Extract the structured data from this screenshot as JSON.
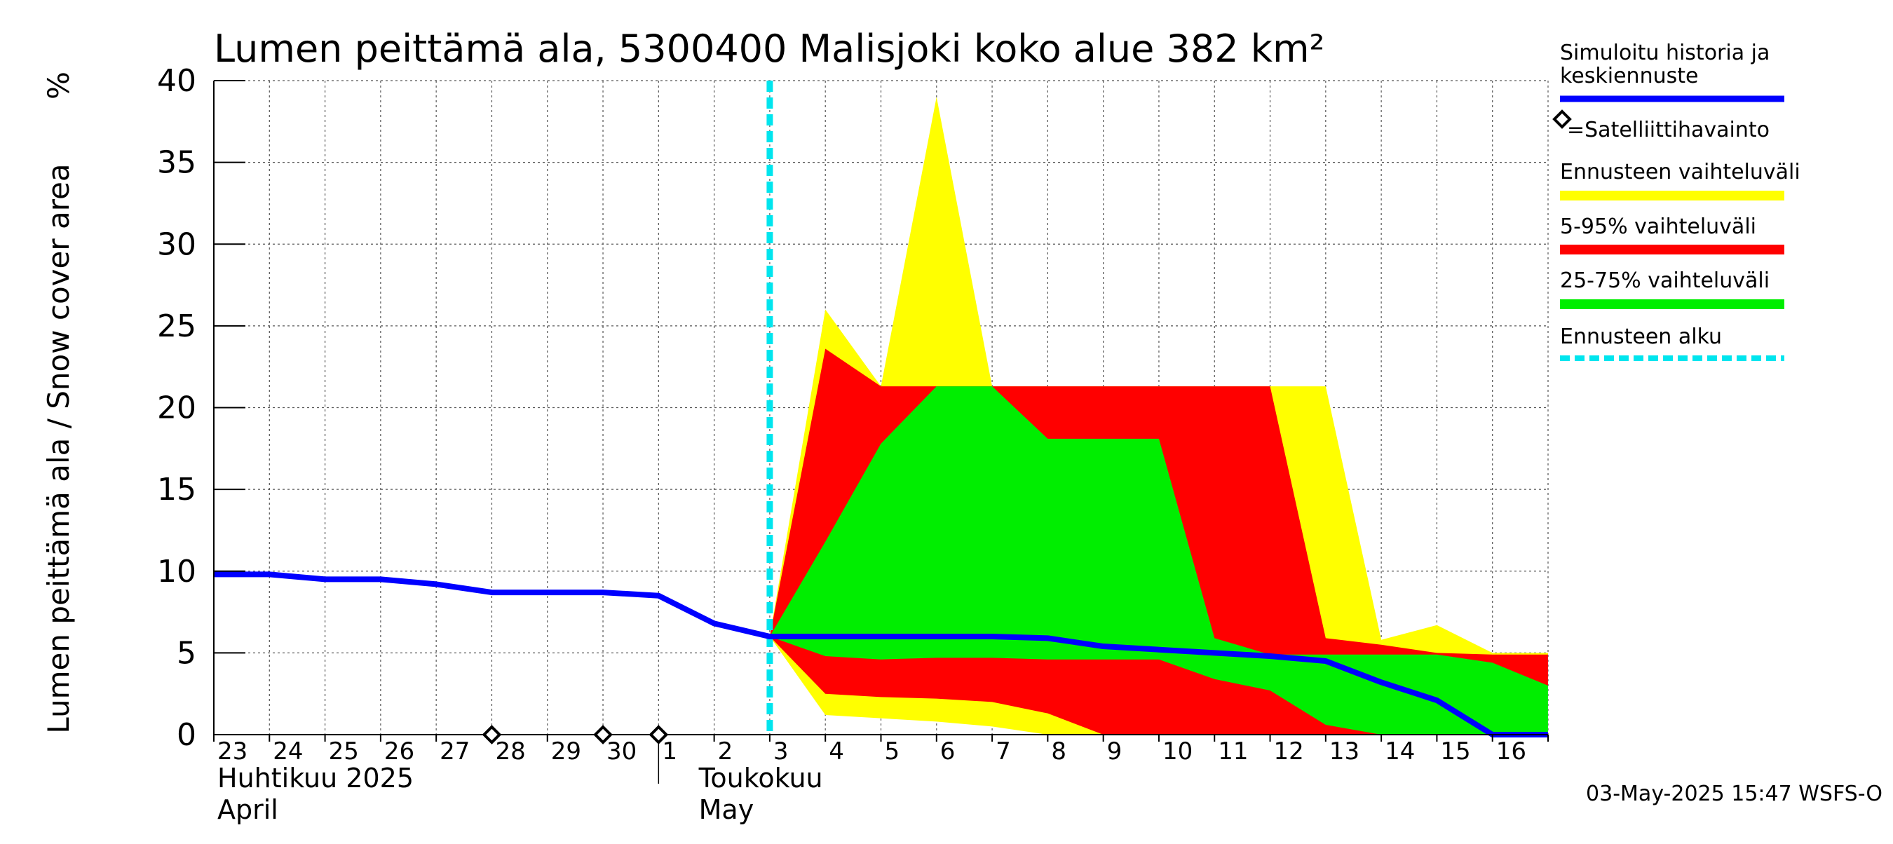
{
  "chart_data": {
    "type": "area",
    "title": "Lumen peittämä ala, 5300400 Malisjoki koko alue 382 km²",
    "ylabel": "Lumen peittämä ala / Snow cover area",
    "yunit": "%",
    "ylim": [
      0,
      40
    ],
    "yticks": [
      0,
      5,
      10,
      15,
      20,
      25,
      30,
      35,
      40
    ],
    "grid": true,
    "x_dates": [
      "2025-04-23",
      "2025-04-24",
      "2025-04-25",
      "2025-04-26",
      "2025-04-27",
      "2025-04-28",
      "2025-04-29",
      "2025-04-30",
      "2025-05-01",
      "2025-05-02",
      "2025-05-03",
      "2025-05-04",
      "2025-05-05",
      "2025-05-06",
      "2025-05-07",
      "2025-05-08",
      "2025-05-09",
      "2025-05-10",
      "2025-05-11",
      "2025-05-12",
      "2025-05-13",
      "2025-05-14",
      "2025-05-15",
      "2025-05-16",
      "2025-05-17"
    ],
    "xtick_labels": [
      "23",
      "24",
      "25",
      "26",
      "27",
      "28",
      "29",
      "30",
      "1",
      "2",
      "3",
      "4",
      "5",
      "6",
      "7",
      "8",
      "9",
      "10",
      "11",
      "12",
      "13",
      "14",
      "15",
      "16"
    ],
    "month_labels": [
      {
        "line1": "Huhtikuu  2025",
        "line2": "April"
      },
      {
        "line1": "Toukokuu",
        "line2": "May"
      }
    ],
    "forecast_start": "2025-05-03",
    "legend_placement": "right",
    "series": [
      {
        "name": "Simuloitu historia ja keskiennuste",
        "color": "#0000ff",
        "x": [
          "2025-04-23",
          "2025-04-24",
          "2025-04-25",
          "2025-04-26",
          "2025-04-27",
          "2025-04-28",
          "2025-04-29",
          "2025-04-30",
          "2025-05-01",
          "2025-05-02",
          "2025-05-03",
          "2025-05-04",
          "2025-05-05",
          "2025-05-06",
          "2025-05-07",
          "2025-05-08",
          "2025-05-09",
          "2025-05-10",
          "2025-05-11",
          "2025-05-12",
          "2025-05-13",
          "2025-05-14",
          "2025-05-15",
          "2025-05-16",
          "2025-05-17"
        ],
        "y": [
          9.8,
          9.8,
          9.5,
          9.5,
          9.2,
          8.7,
          8.7,
          8.7,
          8.5,
          6.8,
          6.0,
          6.0,
          6.0,
          6.0,
          6.0,
          5.9,
          5.4,
          5.2,
          5.0,
          4.8,
          4.5,
          3.2,
          2.1,
          0,
          0
        ]
      },
      {
        "name": "=Satelliittihavainto",
        "type": "scatter",
        "marker": "diamond",
        "x": [
          "2025-04-28",
          "2025-04-30",
          "2025-05-01"
        ],
        "y": [
          0,
          0,
          0
        ]
      },
      {
        "name": "Ennusteen vaihteluväli",
        "color": "#ffff00",
        "x": [
          "2025-05-03",
          "2025-05-04",
          "2025-05-05",
          "2025-05-06",
          "2025-05-07",
          "2025-05-08",
          "2025-05-09",
          "2025-05-10",
          "2025-05-11",
          "2025-05-12",
          "2025-05-13",
          "2025-05-14",
          "2025-05-15",
          "2025-05-16",
          "2025-05-17"
        ],
        "upper": [
          6.0,
          26.0,
          21.3,
          39.0,
          21.3,
          21.3,
          21.3,
          21.3,
          21.3,
          21.3,
          21.3,
          5.8,
          6.7,
          5.0,
          5.0
        ],
        "lower": [
          6.0,
          1.2,
          1.0,
          0.8,
          0.5,
          0,
          0,
          0,
          0,
          0,
          0,
          0,
          0,
          0,
          0
        ]
      },
      {
        "name": "5-95% vaihteluväli",
        "color": "#ff0000",
        "x": [
          "2025-05-03",
          "2025-05-04",
          "2025-05-05",
          "2025-05-06",
          "2025-05-07",
          "2025-05-08",
          "2025-05-09",
          "2025-05-10",
          "2025-05-11",
          "2025-05-12",
          "2025-05-13",
          "2025-05-14",
          "2025-05-15",
          "2025-05-16",
          "2025-05-17"
        ],
        "upper": [
          6.0,
          23.6,
          21.3,
          21.3,
          21.3,
          21.3,
          21.3,
          21.3,
          21.3,
          21.3,
          5.9,
          5.5,
          5.0,
          4.9,
          4.9
        ],
        "lower": [
          6.0,
          2.5,
          2.3,
          2.2,
          2.0,
          1.3,
          0,
          0,
          0,
          0,
          0,
          0,
          0,
          0,
          0
        ]
      },
      {
        "name": "25-75% vaihteluväli",
        "color": "#00ee00",
        "x": [
          "2025-05-03",
          "2025-05-04",
          "2025-05-05",
          "2025-05-06",
          "2025-05-07",
          "2025-05-08",
          "2025-05-09",
          "2025-05-10",
          "2025-05-11",
          "2025-05-12",
          "2025-05-13",
          "2025-05-14",
          "2025-05-15",
          "2025-05-16",
          "2025-05-17"
        ],
        "upper": [
          6.0,
          11.8,
          17.8,
          21.3,
          21.3,
          18.1,
          18.1,
          18.1,
          5.9,
          4.9,
          4.9,
          4.9,
          4.9,
          4.4,
          3.0
        ],
        "lower": [
          6.0,
          4.8,
          4.6,
          4.7,
          4.7,
          4.6,
          4.6,
          4.6,
          3.4,
          2.7,
          0.6,
          0,
          0,
          0,
          0
        ]
      },
      {
        "name": "Ennusteen alku",
        "color": "#00e5ee",
        "type": "vline",
        "x": "2025-05-03"
      }
    ]
  },
  "footer": "03-May-2025 15:47 WSFS-O"
}
